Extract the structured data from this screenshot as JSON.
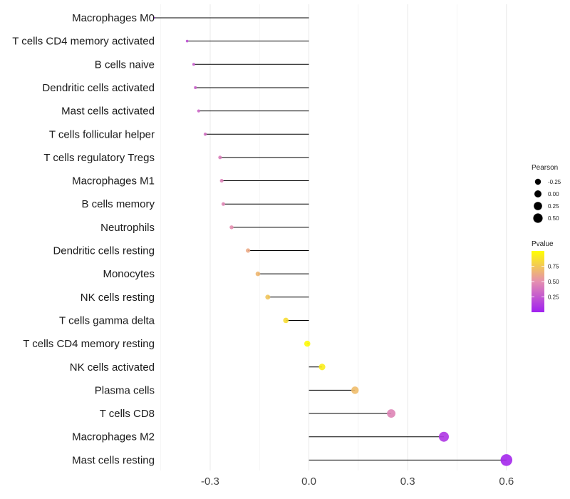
{
  "chart_data": {
    "type": "lollipop",
    "categories": [
      "Macrophages M0",
      "T cells CD4 memory activated",
      "B cells naive",
      "Dendritic cells activated",
      "Mast cells activated",
      "T cells follicular helper",
      "T cells regulatory  Tregs ",
      "Macrophages M1",
      "B cells memory",
      "Neutrophils",
      "Dendritic cells resting",
      "Monocytes",
      "NK cells resting",
      "T cells gamma delta",
      "T cells CD4 memory resting",
      "NK cells activated",
      "Plasma cells",
      "T cells CD8",
      "Macrophages M2",
      "Mast cells resting"
    ],
    "values": [
      -0.47,
      -0.37,
      -0.35,
      -0.345,
      -0.335,
      -0.315,
      -0.27,
      -0.265,
      -0.26,
      -0.235,
      -0.185,
      -0.155,
      -0.125,
      -0.07,
      -0.005,
      0.04,
      0.14,
      0.25,
      0.41,
      0.6
    ],
    "pvalues": [
      0.02,
      0.22,
      0.28,
      0.3,
      0.32,
      0.36,
      0.42,
      0.44,
      0.46,
      0.5,
      0.62,
      0.68,
      0.74,
      0.85,
      0.98,
      0.92,
      0.7,
      0.45,
      0.1,
      0.03
    ],
    "xlim": [
      -0.445,
      0.62
    ],
    "xticks": [
      -0.3,
      0.0,
      0.3,
      0.6
    ],
    "xtick_labels": [
      "-0.3",
      "0.0",
      "0.3",
      "0.6"
    ],
    "xlabel": "",
    "ylabel": "",
    "grid": true,
    "legend": {
      "size_title": "Pearson",
      "size_values": [
        -0.25,
        0.0,
        0.25,
        0.5
      ],
      "size_labels": [
        "-0.25",
        "0.00",
        "0.25",
        "0.50"
      ],
      "color_title": "Pvalue",
      "color_ticks": [
        0.75,
        0.5,
        0.25
      ],
      "color_tick_labels": [
        "0.75",
        "0.50",
        "0.25"
      ],
      "color_low": "#a020f0",
      "color_mid": "#e58fb0",
      "color_high": "#ffff00"
    }
  }
}
